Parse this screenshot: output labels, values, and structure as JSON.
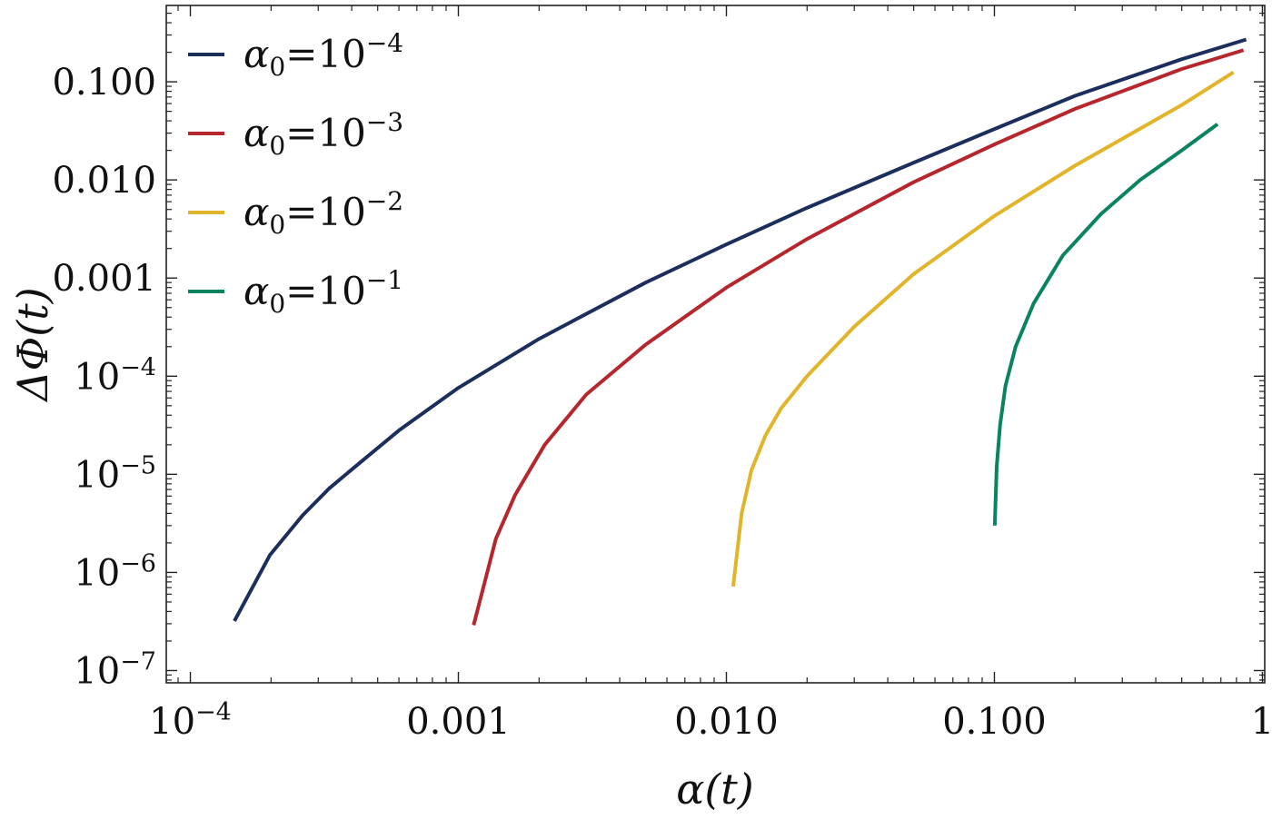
{
  "chart_data": {
    "type": "line",
    "xlabel": "α(t)",
    "ylabel": "ΔΦ(t)",
    "x_scale": "log",
    "y_scale": "log",
    "xlim": [
      8.13e-05,
      1.02
    ],
    "ylim": [
      7.5e-08,
      0.6
    ],
    "grid": false,
    "legend_position": "top-left",
    "x_ticks": [
      {
        "value": 0.0001,
        "base": "10",
        "exp": "−4"
      },
      {
        "value": 0.001,
        "text": "0.001"
      },
      {
        "value": 0.01,
        "text": "0.010"
      },
      {
        "value": 0.1,
        "text": "0.100"
      },
      {
        "value": 1,
        "text": "1"
      }
    ],
    "y_ticks": [
      {
        "value": 1e-07,
        "base": "10",
        "exp": "−7"
      },
      {
        "value": 1e-06,
        "base": "10",
        "exp": "−6"
      },
      {
        "value": 1e-05,
        "base": "10",
        "exp": "−5"
      },
      {
        "value": 0.0001,
        "base": "10",
        "exp": "−4"
      },
      {
        "value": 0.001,
        "text": "0.001"
      },
      {
        "value": 0.01,
        "text": "0.010"
      },
      {
        "value": 0.1,
        "text": "0.100"
      }
    ],
    "series": [
      {
        "name": "α0=10^−4",
        "legend": {
          "sym": "α",
          "sub": "0",
          "eq": "=10",
          "exp": "−4"
        },
        "color": "#1c2f5c",
        "x": [
          0.000146,
          0.000198,
          0.000262,
          0.00033,
          0.000405,
          0.0006,
          0.001,
          0.002,
          0.005,
          0.01,
          0.02,
          0.05,
          0.1,
          0.2,
          0.5,
          0.87
        ],
        "y": [
          3.2e-07,
          1.5e-06,
          3.8e-06,
          7.2e-06,
          1.15e-05,
          2.8e-05,
          7.6e-05,
          0.00024,
          0.0009,
          0.0022,
          0.0052,
          0.015,
          0.033,
          0.072,
          0.17,
          0.27
        ]
      },
      {
        "name": "α0=10^−3",
        "legend": {
          "sym": "α",
          "sub": "0",
          "eq": "=10",
          "exp": "−3"
        },
        "color": "#b5272d",
        "x": [
          0.00114,
          0.00138,
          0.00163,
          0.00188,
          0.0021,
          0.003,
          0.005,
          0.01,
          0.02,
          0.05,
          0.1,
          0.2,
          0.5,
          0.85
        ],
        "y": [
          2.9e-07,
          2.2e-06,
          6.2e-06,
          1.2e-05,
          2e-05,
          6.5e-05,
          0.00021,
          0.0008,
          0.0025,
          0.0095,
          0.023,
          0.053,
          0.135,
          0.21
        ]
      },
      {
        "name": "α0=10^−2",
        "legend": {
          "sym": "α",
          "sub": "0",
          "eq": "=10",
          "exp": "−2"
        },
        "color": "#e2b42a",
        "x": [
          0.0106,
          0.0114,
          0.0124,
          0.014,
          0.016,
          0.02,
          0.03,
          0.05,
          0.1,
          0.2,
          0.5,
          0.78
        ],
        "y": [
          7.2e-07,
          4e-06,
          1.1e-05,
          2.5e-05,
          4.7e-05,
          0.0001,
          0.00032,
          0.0011,
          0.0043,
          0.014,
          0.058,
          0.125
        ]
      },
      {
        "name": "α0=10^−1",
        "legend": {
          "sym": "α",
          "sub": "0",
          "eq": "=10",
          "exp": "−1"
        },
        "color": "#0a8460",
        "x": [
          0.1003,
          0.102,
          0.105,
          0.11,
          0.12,
          0.14,
          0.18,
          0.25,
          0.35,
          0.5,
          0.68
        ],
        "y": [
          3e-06,
          1.2e-05,
          3.2e-05,
          8e-05,
          0.0002,
          0.00055,
          0.0017,
          0.0045,
          0.01,
          0.02,
          0.037
        ]
      }
    ]
  }
}
